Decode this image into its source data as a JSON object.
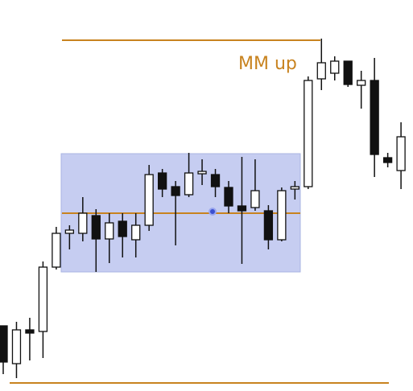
{
  "chart_data": {
    "type": "candlestick",
    "annotation": "MM up",
    "ylim": [
      0,
      486
    ],
    "open": [
      81,
      34,
      76,
      74,
      154,
      196,
      196,
      218,
      189,
      211,
      188,
      206,
      271,
      254,
      244,
      270,
      269,
      253,
      230,
      228,
      224,
      188,
      251,
      254,
      388,
      395,
      410,
      380,
      386,
      290,
      274
    ],
    "high": [
      81,
      86,
      91,
      161,
      204,
      206,
      241,
      226,
      221,
      221,
      221,
      281,
      276,
      261,
      296,
      288,
      276,
      261,
      291,
      288,
      231,
      253,
      261,
      391,
      438,
      416,
      410,
      398,
      414,
      296,
      334
    ],
    "low": [
      21,
      16,
      38,
      41,
      151,
      176,
      186,
      148,
      159,
      166,
      166,
      199,
      241,
      181,
      241,
      256,
      241,
      221,
      158,
      224,
      176,
      186,
      238,
      251,
      374,
      386,
      378,
      351,
      266,
      278,
      251
    ],
    "close": [
      36,
      76,
      72,
      154,
      196,
      200,
      221,
      189,
      209,
      192,
      206,
      269,
      251,
      243,
      271,
      273,
      254,
      230,
      224,
      249,
      188,
      249,
      254,
      386,
      408,
      410,
      381,
      386,
      294,
      284,
      316
    ],
    "up_color": "#ffffff",
    "down_color": "#111111",
    "levels": [
      436,
      10,
      221
    ],
    "level_color": "#c8831f",
    "box": {
      "top": 295,
      "bottom": 148,
      "color": "#c6cdf1"
    }
  }
}
